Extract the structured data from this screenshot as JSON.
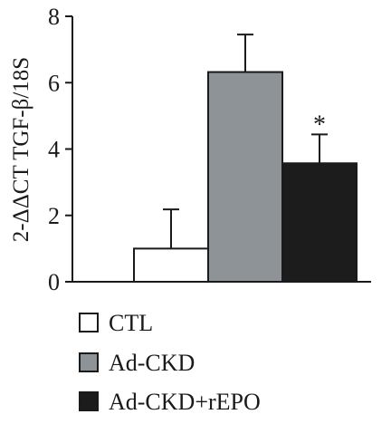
{
  "chart_data": {
    "type": "bar",
    "categories": [
      "CTL",
      "Ad-CKD",
      "Ad-CKD+rEPO"
    ],
    "values": [
      1.0,
      6.32,
      3.57
    ],
    "errors": [
      1.18,
      1.13,
      0.87
    ],
    "colors": [
      "#ffffff",
      "#8e9397",
      "#1c1c1c"
    ],
    "title": "",
    "xlabel": "",
    "ylabel": "2-ΔΔCT TGF-β/18S",
    "ylim": [
      0,
      8
    ],
    "yticks": [
      "0",
      "2",
      "4",
      "6",
      "8"
    ],
    "annotations": [
      {
        "category": "Ad-CKD+rEPO",
        "text": "*"
      }
    ],
    "legend": {
      "placement": "bottom",
      "entries": [
        "CTL",
        "Ad-CKD",
        "Ad-CKD+rEPO"
      ]
    },
    "grid": false
  }
}
